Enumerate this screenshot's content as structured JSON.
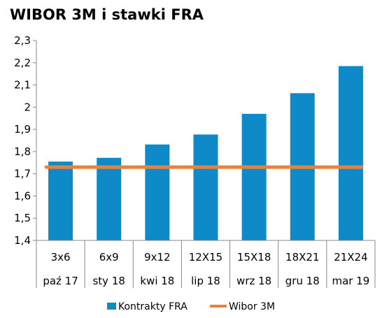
{
  "chart_data": {
    "type": "bar",
    "title": "WIBOR 3M i stawki FRA",
    "categories": [
      "3x6",
      "6x9",
      "9x12",
      "12X15",
      "15X18",
      "18X21",
      "21X24"
    ],
    "sub_categories": [
      "paź 17",
      "sty 18",
      "kwi 18",
      "lip 18",
      "wrz 18",
      "gru 18",
      "mar 19"
    ],
    "series": [
      {
        "name": "Kontrakty FRA",
        "type": "bar",
        "color": "#0E8AC8",
        "values": [
          1.755,
          1.772,
          1.832,
          1.877,
          1.97,
          2.063,
          2.185
        ]
      },
      {
        "name": "Wibor 3M",
        "type": "line",
        "color": "#E8833F",
        "values": [
          1.73,
          1.73,
          1.73,
          1.73,
          1.73,
          1.73,
          1.73
        ]
      }
    ],
    "y_ticks": [
      "1,4",
      "1,5",
      "1,6",
      "1,7",
      "1,8",
      "1,9",
      "2",
      "2,1",
      "2,2",
      "2,3"
    ],
    "ylim": [
      1.4,
      2.3
    ],
    "ystep": 0.1,
    "grid": false,
    "legend": "bottom"
  }
}
